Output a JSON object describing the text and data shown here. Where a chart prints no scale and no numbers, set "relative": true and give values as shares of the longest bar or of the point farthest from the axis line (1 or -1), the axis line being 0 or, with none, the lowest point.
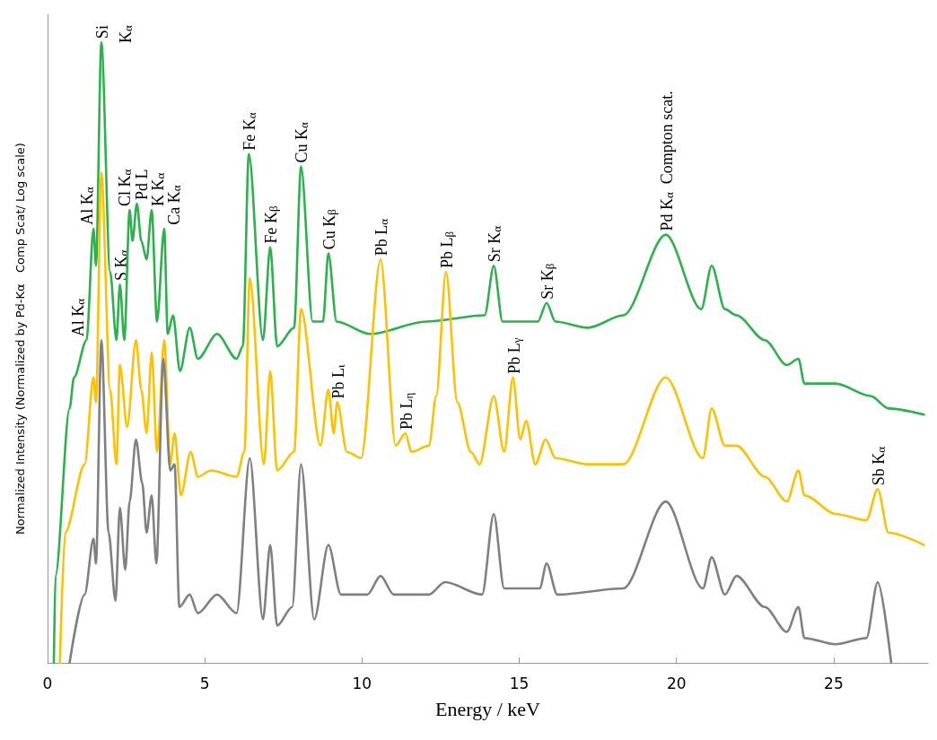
{
  "chart_data": {
    "type": "line",
    "relative": true,
    "xlabel": "Energy / keV",
    "ylabel": "Normalized Intensity (Normalized by Pd-Kα   Comp Scat/ Log scale)",
    "xlim": [
      0,
      28
    ],
    "xticks": [
      0,
      5,
      10,
      15,
      20,
      25
    ],
    "tick_labels": "x",
    "series": [
      {
        "color": "#2bb24c",
        "x": [
          0.2,
          0.25,
          0.7,
          0.84,
          1.24,
          1.46,
          1.54,
          1.71,
          1.99,
          2.19,
          2.3,
          2.44,
          2.61,
          2.7,
          2.84,
          2.98,
          3.15,
          3.31,
          3.48,
          3.71,
          3.82,
          3.99,
          4.21,
          4.52,
          4.78,
          5.39,
          6.01,
          6.21,
          6.4,
          6.85,
          7.08,
          7.3,
          7.84,
          8.06,
          8.43,
          8.76,
          8.93,
          9.19,
          10.25,
          12.05,
          13.9,
          14.19,
          14.47,
          15.59,
          15.87,
          16.15,
          17.19,
          18.31,
          19.66,
          20.79,
          21.12,
          21.54,
          21.91,
          22.81,
          23.51,
          23.88,
          24.07,
          25.06,
          26.18,
          26.74,
          27.87
        ],
        "values": [
          0,
          0.14,
          0.41,
          0.46,
          0.52,
          0.7,
          0.64,
          1,
          0.63,
          0.52,
          0.61,
          0.52,
          0.73,
          0.68,
          0.74,
          0.68,
          0.65,
          0.73,
          0.55,
          0.7,
          0.53,
          0.56,
          0.47,
          0.54,
          0.49,
          0.53,
          0.49,
          0.51,
          0.82,
          0.52,
          0.67,
          0.51,
          0.54,
          0.8,
          0.55,
          0.55,
          0.66,
          0.55,
          0.53,
          0.55,
          0.56,
          0.64,
          0.55,
          0.55,
          0.58,
          0.55,
          0.54,
          0.56,
          0.69,
          0.57,
          0.64,
          0.57,
          0.56,
          0.52,
          0.48,
          0.49,
          0.45,
          0.45,
          0.43,
          0.41,
          0.4
        ]
      },
      {
        "color": "#ffc000",
        "x": [
          0.39,
          0.56,
          1.18,
          1.46,
          1.54,
          1.71,
          1.99,
          2.19,
          2.3,
          2.53,
          2.81,
          2.98,
          3.15,
          3.31,
          3.48,
          3.71,
          3.9,
          4.04,
          4.24,
          4.55,
          4.78,
          5.2,
          6.01,
          6.26,
          6.43,
          6.88,
          7.08,
          7.3,
          7.84,
          8.06,
          8.68,
          8.93,
          9.1,
          9.21,
          9.52,
          9.97,
          10.59,
          11.07,
          11.38,
          11.57,
          12.13,
          12.36,
          12.67,
          13.03,
          13.46,
          13.74,
          14.19,
          14.52,
          14.8,
          15.03,
          15.22,
          15.51,
          15.84,
          16.15,
          17.19,
          18.31,
          19.66,
          20.84,
          21.12,
          21.54,
          21.91,
          22.81,
          23.51,
          23.88,
          24.07,
          25.06,
          26.04,
          26.4,
          26.74,
          27.87
        ],
        "values": [
          0,
          0.21,
          0.32,
          0.46,
          0.42,
          0.79,
          0.44,
          0.32,
          0.48,
          0.38,
          0.52,
          0.44,
          0.37,
          0.5,
          0.34,
          0.52,
          0.32,
          0.37,
          0.27,
          0.34,
          0.3,
          0.31,
          0.3,
          0.34,
          0.62,
          0.32,
          0.47,
          0.31,
          0.34,
          0.57,
          0.35,
          0.44,
          0.37,
          0.42,
          0.34,
          0.33,
          0.65,
          0.35,
          0.37,
          0.34,
          0.35,
          0.43,
          0.63,
          0.42,
          0.34,
          0.32,
          0.43,
          0.34,
          0.46,
          0.36,
          0.39,
          0.32,
          0.36,
          0.33,
          0.32,
          0.32,
          0.46,
          0.33,
          0.41,
          0.35,
          0.35,
          0.3,
          0.26,
          0.31,
          0.27,
          0.24,
          0.23,
          0.28,
          0.21,
          0.19
        ]
      },
      {
        "color": "#808080",
        "x": [
          0.7,
          1.18,
          1.46,
          1.54,
          1.71,
          1.94,
          2.16,
          2.3,
          2.47,
          2.61,
          2.81,
          3.01,
          3.15,
          3.31,
          3.46,
          3.68,
          3.9,
          4.04,
          4.19,
          4.52,
          4.78,
          5.39,
          6.01,
          6.43,
          6.85,
          7.08,
          7.3,
          7.78,
          8.06,
          8.48,
          8.93,
          9.33,
          10.17,
          10.59,
          11.01,
          12.13,
          12.64,
          13.82,
          14.19,
          14.52,
          15.65,
          15.87,
          16.21,
          18.31,
          19.66,
          20.84,
          21.12,
          21.54,
          21.91,
          22.81,
          23.51,
          23.88,
          24.07,
          25.06,
          26.04,
          26.4,
          26.83
        ],
        "values": [
          0,
          0.11,
          0.2,
          0.16,
          0.52,
          0.21,
          0.1,
          0.25,
          0.15,
          0.26,
          0.36,
          0.29,
          0.21,
          0.27,
          0.16,
          0.49,
          0.31,
          0.32,
          0.09,
          0.11,
          0.08,
          0.11,
          0.08,
          0.33,
          0.07,
          0.19,
          0.06,
          0.09,
          0.32,
          0.07,
          0.19,
          0.11,
          0.11,
          0.14,
          0.11,
          0.11,
          0.13,
          0.11,
          0.24,
          0.12,
          0.12,
          0.16,
          0.11,
          0.12,
          0.26,
          0.12,
          0.17,
          0.11,
          0.14,
          0.09,
          0.05,
          0.09,
          0.04,
          0.03,
          0.04,
          0.13,
          0
        ]
      }
    ],
    "annotations": [
      {
        "text": "Al K$_{α}$",
        "x": 1.24,
        "y": 0.52
      },
      {
        "text": "Al K$_{α}$",
        "x": 1.46,
        "y": 0.7
      },
      {
        "text": "Si",
        "x": 1.71,
        "y": 1
      },
      "K$_{α}$",
      {
        "text": "S K$_{α}$",
        "x": 2.3,
        "y": 0.61
      },
      {
        "text": "Cl K$_{α}$",
        "x": 2.61,
        "y": 0.73
      },
      {
        "text": "Pd L",
        "x": 2.84,
        "y": 0.74
      },
      {
        "text": "K K$_{α}$",
        "x": 3.31,
        "y": 0.73
      },
      {
        "text": "Ca K$_{α}$",
        "x": 3.71,
        "y": 0.7
      },
      {
        "text": "Fe K$_{α}$",
        "x": 6.4,
        "y": 0.82
      },
      {
        "text": "Fe K$_{β}$",
        "x": 7.08,
        "y": 0.67
      },
      {
        "text": "Cu K$_{α}$",
        "x": 8.06,
        "y": 0.8
      },
      {
        "text": "Cu K$_{β}$",
        "x": 8.93,
        "y": 0.66
      },
      {
        "text": "Pb L$_{α}$",
        "x": 10.59,
        "y": 0.65
      },
      {
        "text": "Pb L$_{β}$",
        "x": 12.67,
        "y": 0.63
      },
      {
        "text": "Sr K$_{α}$",
        "x": 14.19,
        "y": 0.64
      },
      {
        "text": "Sr K$_{β}$",
        "x": 15.87,
        "y": 0.58
      },
      {
        "text": "Pd K$_{α}$  Compton scat.",
        "x": 19.66,
        "y": 0.69
      },
      {
        "text": "Pb L$_{ι}$",
        "x": 9.21,
        "y": 0.42
      },
      {
        "text": "Pb L$_{η}$",
        "x": 11.38,
        "y": 0.37
      },
      {
        "text": "Pb L$_{γ}$",
        "x": 14.8,
        "y": 0.46
      },
      {
        "text": "Sb K$_{α}$",
        "x": 26.4,
        "y": 0.28
      }
    ]
  }
}
